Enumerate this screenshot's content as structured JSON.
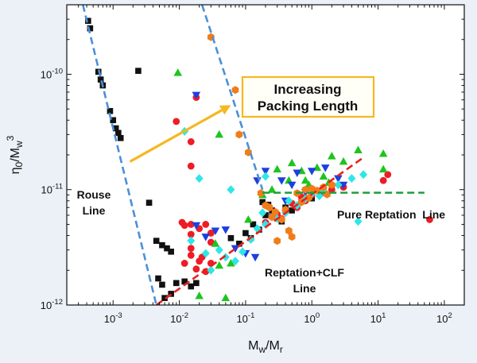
{
  "chart_data": {
    "type": "scatter",
    "xscale": "log",
    "yscale": "log",
    "xlim": [
      0.0002,
      200
    ],
    "ylim": [
      1e-12,
      4e-10
    ],
    "xlabel": {
      "base": "M",
      "sub1": "w",
      "sep": "/M",
      "sub2": "r"
    },
    "ylabel": {
      "eta": "η",
      "sub0": "0",
      "sep": "/M",
      "subw": "w",
      "sup": "3"
    },
    "xticks": [
      {
        "value": 0.001,
        "base": "10",
        "exp": "-3"
      },
      {
        "value": 0.01,
        "base": "10",
        "exp": "-2"
      },
      {
        "value": 0.1,
        "base": "10",
        "exp": "-1"
      },
      {
        "value": 1,
        "base": "10",
        "exp": "0"
      },
      {
        "value": 10,
        "base": "10",
        "exp": "1"
      },
      {
        "value": 100,
        "base": "10",
        "exp": "2"
      }
    ],
    "yticks": [
      {
        "value": 1e-12,
        "base": "10",
        "exp": "-12"
      },
      {
        "value": 1e-11,
        "base": "10",
        "exp": "-11"
      },
      {
        "value": 1e-10,
        "base": "10",
        "exp": "-10"
      }
    ],
    "series": [
      {
        "name": "black-squares",
        "marker": "square",
        "color": "#111111",
        "points": [
          [
            0.00042,
            2.9e-10
          ],
          [
            0.00045,
            2.5e-10
          ],
          [
            0.0006,
            1.05e-10
          ],
          [
            0.00065,
            9e-11
          ],
          [
            0.0007,
            8e-11
          ],
          [
            0.0009,
            4.8e-11
          ],
          [
            0.001,
            4e-11
          ],
          [
            0.0011,
            3.4e-11
          ],
          [
            0.0012,
            3.1e-11
          ],
          [
            0.0013,
            2.8e-11
          ],
          [
            0.0024,
            1.07e-10
          ],
          [
            0.0035,
            7.7e-12
          ],
          [
            0.0045,
            3.6e-12
          ],
          [
            0.0055,
            3.3e-12
          ],
          [
            0.0065,
            3.1e-12
          ],
          [
            0.0075,
            2.9e-12
          ],
          [
            0.0048,
            1.7e-12
          ],
          [
            0.0055,
            1.5e-12
          ],
          [
            0.006,
            1.15e-12
          ],
          [
            0.0075,
            1.25e-12
          ],
          [
            0.009,
            1.55e-12
          ],
          [
            0.012,
            1.6e-12
          ],
          [
            0.015,
            1.45e-12
          ],
          [
            0.018,
            1.55e-12
          ],
          [
            0.06,
            3.8e-12
          ],
          [
            0.08,
            3.4e-12
          ],
          [
            0.1,
            4.2e-12
          ],
          [
            0.12,
            3.8e-12
          ],
          [
            0.16,
            4.5e-12
          ],
          [
            0.2,
            6e-12
          ],
          [
            0.25,
            6.6e-12
          ],
          [
            0.3,
            6e-12
          ],
          [
            0.4,
            7e-12
          ],
          [
            0.5,
            6.6e-12
          ],
          [
            0.7,
            8e-12
          ],
          [
            1.0,
            8.4e-12
          ],
          [
            0.18,
            7.8e-12
          ],
          [
            0.22,
            7.4e-12
          ],
          [
            0.13,
            5e-12
          ],
          [
            0.35,
            5.3e-12
          ]
        ]
      },
      {
        "name": "red-circles",
        "marker": "circle",
        "color": "#ee1c25",
        "points": [
          [
            0.009,
            3.9e-11
          ],
          [
            0.015,
            1.6e-11
          ],
          [
            0.018,
            6.3e-11
          ],
          [
            0.015,
            2.6e-11
          ],
          [
            0.011,
            5.2e-12
          ],
          [
            0.012,
            4.9e-12
          ],
          [
            0.015,
            5e-12
          ],
          [
            0.02,
            4.6e-12
          ],
          [
            0.025,
            5e-12
          ],
          [
            0.012,
            2.3e-12
          ],
          [
            0.015,
            2.7e-12
          ],
          [
            0.02,
            2.4e-12
          ],
          [
            0.025,
            1.95e-12
          ],
          [
            0.03,
            2.3e-12
          ],
          [
            0.018,
            2.05e-12
          ],
          [
            0.022,
            2.6e-12
          ],
          [
            0.015,
            3.1e-12
          ],
          [
            0.03,
            3.5e-12
          ],
          [
            0.015,
            4.1e-12
          ],
          [
            0.03,
            4.2e-12
          ],
          [
            0.2,
            5.2e-12
          ],
          [
            0.3,
            6.1e-12
          ],
          [
            0.4,
            6.6e-12
          ],
          [
            0.5,
            7.6e-12
          ],
          [
            0.7,
            8.6e-12
          ],
          [
            1.0,
            9e-12
          ],
          [
            1.5,
            9.5e-12
          ],
          [
            2.0,
            1e-11
          ],
          [
            3.0,
            1.05e-11
          ],
          [
            14,
            1.35e-11
          ],
          [
            12,
            1.2e-11
          ],
          [
            60,
            5.5e-12
          ],
          [
            0.6,
            7e-12
          ],
          [
            0.35,
            5.6e-12
          ],
          [
            0.25,
            5.8e-12
          ],
          [
            0.8,
            8e-12
          ]
        ]
      },
      {
        "name": "green-triangles",
        "marker": "triangle",
        "color": "#1ec41e",
        "points": [
          [
            0.0095,
            1.03e-10
          ],
          [
            0.04,
            3e-11
          ],
          [
            0.3,
            1.5e-11
          ],
          [
            0.5,
            1.7e-11
          ],
          [
            0.7,
            1.45e-11
          ],
          [
            1.2,
            1.55e-11
          ],
          [
            1.5,
            1.3e-11
          ],
          [
            2.0,
            1.95e-11
          ],
          [
            3.0,
            1.75e-11
          ],
          [
            5.0,
            2.2e-11
          ],
          [
            12,
            2.05e-11
          ],
          [
            12,
            1.5e-11
          ],
          [
            0.8,
            1.2e-11
          ],
          [
            0.45,
            1.2e-11
          ],
          [
            0.25,
            1e-11
          ],
          [
            0.18,
            9e-12
          ],
          [
            0.06,
            2.3e-12
          ],
          [
            0.04,
            2.2e-12
          ],
          [
            0.05,
            1.15e-12
          ],
          [
            0.02,
            1.2e-12
          ],
          [
            0.035,
            3.4e-12
          ],
          [
            0.11,
            5.5e-12
          ],
          [
            0.9,
            1.1e-11
          ],
          [
            1.8,
            1.15e-11
          ]
        ]
      },
      {
        "name": "blue-down-triangles",
        "marker": "triangle-down",
        "color": "#1c3fe0",
        "points": [
          [
            0.018,
            6.6e-11
          ],
          [
            0.018,
            4.9e-12
          ],
          [
            0.025,
            3.9e-12
          ],
          [
            0.035,
            4.4e-12
          ],
          [
            0.05,
            4.5e-12
          ],
          [
            0.07,
            3.1e-12
          ],
          [
            0.1,
            2.8e-12
          ],
          [
            0.14,
            2.6e-12
          ],
          [
            0.2,
            1.45e-11
          ],
          [
            0.35,
            1.2e-11
          ],
          [
            0.5,
            1.1e-11
          ],
          [
            0.6,
            1.4e-11
          ],
          [
            1.0,
            1.45e-11
          ],
          [
            1.6,
            1.55e-11
          ],
          [
            2.5,
            1.25e-11
          ],
          [
            3.0,
            1.1e-11
          ],
          [
            0.25,
            5.8e-12
          ],
          [
            0.4,
            8e-12
          ],
          [
            0.8,
            9.5e-12
          ],
          [
            0.15,
            1.2e-11
          ]
        ]
      },
      {
        "name": "cyan-diamonds",
        "marker": "diamond",
        "color": "#2ee6e6",
        "points": [
          [
            0.012,
            3.2e-11
          ],
          [
            0.02,
            1.25e-11
          ],
          [
            0.06,
            1e-11
          ],
          [
            0.2,
            1.3e-11
          ],
          [
            0.015,
            3.6e-12
          ],
          [
            0.025,
            2.8e-12
          ],
          [
            0.04,
            3e-12
          ],
          [
            0.05,
            2.6e-12
          ],
          [
            0.07,
            2.4e-12
          ],
          [
            0.09,
            2.9e-12
          ],
          [
            0.12,
            3.7e-12
          ],
          [
            0.15,
            4.6e-12
          ],
          [
            0.2,
            5e-12
          ],
          [
            0.3,
            5.6e-12
          ],
          [
            0.4,
            6.3e-12
          ],
          [
            0.6,
            7.3e-12
          ],
          [
            0.8,
            8.3e-12
          ],
          [
            1.0,
            9.2e-12
          ],
          [
            1.5,
            9.8e-12
          ],
          [
            2.5,
            1.1e-11
          ],
          [
            4.0,
            1.25e-11
          ],
          [
            5.0,
            5.3e-12
          ],
          [
            6.0,
            1.35e-11
          ],
          [
            0.03,
            2e-12
          ],
          [
            0.45,
            8e-12
          ],
          [
            0.7,
            7.8e-12
          ],
          [
            1.3,
            8.8e-12
          ],
          [
            0.18,
            6.3e-12
          ]
        ]
      },
      {
        "name": "orange-hexagons",
        "marker": "hexagon",
        "color": "#f07d1a",
        "points": [
          [
            0.03,
            2.1e-10
          ],
          [
            0.07,
            7.3e-11
          ],
          [
            0.08,
            3e-11
          ],
          [
            0.11,
            2.1e-11
          ],
          [
            0.17,
            9.3e-12
          ],
          [
            0.2,
            7.3e-12
          ],
          [
            0.23,
            7e-12
          ],
          [
            0.28,
            6.4e-12
          ],
          [
            0.35,
            5.5e-12
          ],
          [
            0.45,
            4.4e-12
          ],
          [
            0.5,
            3.9e-12
          ],
          [
            0.3,
            3.6e-12
          ],
          [
            0.6,
            9.3e-12
          ],
          [
            0.8,
            1e-11
          ],
          [
            1.0,
            1.02e-11
          ],
          [
            1.2,
            9.8e-12
          ],
          [
            1.5,
            1.05e-11
          ],
          [
            2.0,
            1.1e-11
          ],
          [
            1.7,
            9.1e-12
          ],
          [
            0.9,
            8.5e-12
          ],
          [
            0.4,
            6.7e-12
          ],
          [
            0.25,
            5.8e-12
          ],
          [
            0.7,
            7.8e-12
          ]
        ]
      }
    ],
    "lines": [
      {
        "name": "rouse-line",
        "color": "#4a90d9",
        "dashed": true,
        "points": [
          [
            0.00035,
            4e-10
          ],
          [
            0.0045,
            1e-12
          ]
        ]
      },
      {
        "name": "packing-shift-line",
        "color": "#4a90d9",
        "dashed": true,
        "points": [
          [
            0.022,
            4e-10
          ],
          [
            0.18,
            1e-11
          ]
        ]
      },
      {
        "name": "reptation-clf-line",
        "color": "#e8211c",
        "dashed": true,
        "points": [
          [
            0.0045,
            1e-12
          ],
          [
            6,
            1.9e-11
          ]
        ]
      },
      {
        "name": "pure-reptation-line",
        "color": "#1b9e3a",
        "dashed": true,
        "points": [
          [
            0.18,
            9.4e-12
          ],
          [
            50,
            9.4e-12
          ]
        ]
      }
    ],
    "annotations": {
      "rouse": [
        "Rouse",
        "Line"
      ],
      "pure_reptation": "Pure Reptation  Line",
      "reptation_clf": [
        "Reptation+CLF",
        "Line"
      ],
      "callout": [
        "Increasing",
        "Packing Length"
      ]
    },
    "arrow": {
      "color": "#f5b820",
      "from": [
        0.0018,
        1.75e-11
      ],
      "to": [
        0.06,
        5.4e-11
      ]
    }
  },
  "colors": {
    "background": "#ecf1f8",
    "plot_background": "#ffffff",
    "callout_border": "#f5b820",
    "callout_fill": "#fffef7"
  }
}
